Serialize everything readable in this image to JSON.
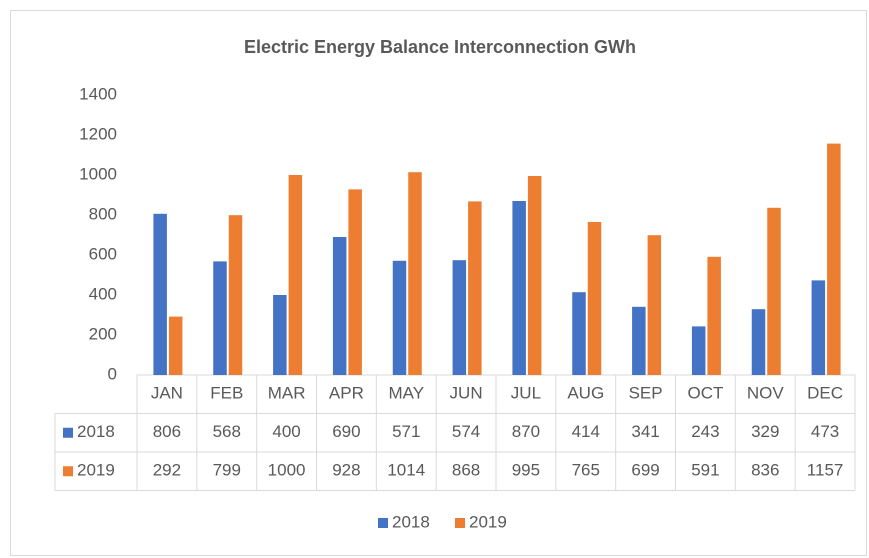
{
  "chart_data": {
    "type": "bar",
    "title": "Electric Energy Balance Interconnection GWh",
    "categories": [
      "JAN",
      "FEB",
      "MAR",
      "APR",
      "MAY",
      "JUN",
      "JUL",
      "AUG",
      "SEP",
      "OCT",
      "NOV",
      "DEC"
    ],
    "series": [
      {
        "name": "2018",
        "color": "#4472c4",
        "values": [
          806,
          568,
          400,
          690,
          571,
          574,
          870,
          414,
          341,
          243,
          329,
          473
        ]
      },
      {
        "name": "2019",
        "color": "#ed7d31",
        "values": [
          292,
          799,
          1000,
          928,
          1014,
          868,
          995,
          765,
          699,
          591,
          836,
          1157
        ]
      }
    ],
    "ylim": [
      0,
      1400
    ],
    "yticks": [
      0,
      200,
      400,
      600,
      800,
      1000,
      1200,
      1400
    ],
    "legend": "bottom",
    "data_table": true
  }
}
